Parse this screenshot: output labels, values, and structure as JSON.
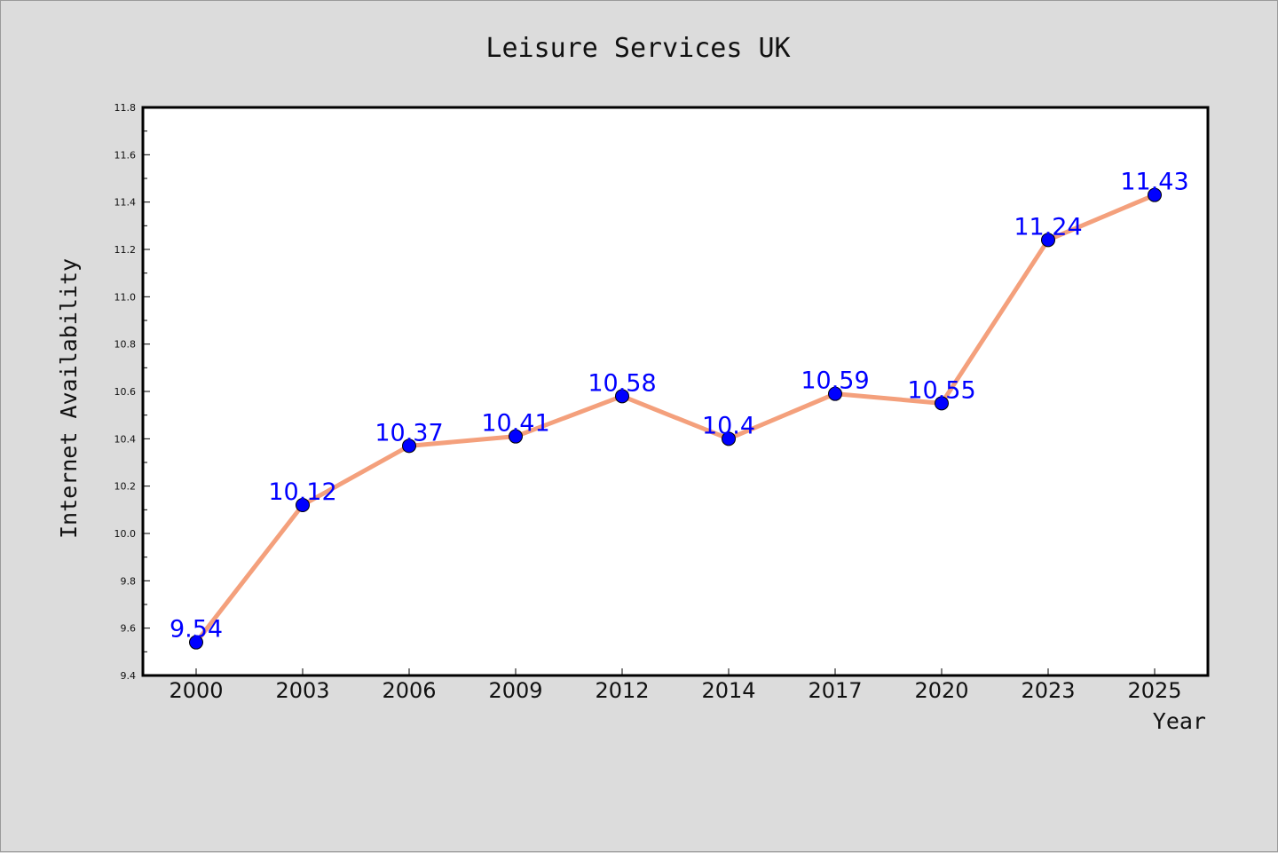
{
  "chart_data": {
    "type": "line",
    "title": "Leisure Services UK",
    "xlabel": "Year",
    "ylabel": "Internet Availability",
    "categories": [
      "2000",
      "2003",
      "2006",
      "2009",
      "2012",
      "2014",
      "2017",
      "2020",
      "2023",
      "2025"
    ],
    "series": [
      {
        "values": [
          9.54,
          10.12,
          10.37,
          10.41,
          10.58,
          10.4,
          10.59,
          10.55,
          11.24,
          11.43
        ],
        "data_labels": [
          "9.54",
          "10.12",
          "10.37",
          "10.41",
          "10.58",
          "10.4",
          "10.59",
          "10.55",
          "11.24",
          "11.43"
        ],
        "line_color": "#f4a07c",
        "marker_color": "#0000ff"
      }
    ],
    "ylim": [
      9.4,
      11.8
    ],
    "yticks": [
      "9.4",
      "9.6",
      "9.8",
      "10.0",
      "10.2",
      "10.4",
      "10.6",
      "10.8",
      "11.0",
      "11.2",
      "11.4",
      "11.6",
      "11.8"
    ],
    "grid": false,
    "legend": "none",
    "background_color": "#dcdcdc",
    "plot_background_color": "#ffffff"
  }
}
